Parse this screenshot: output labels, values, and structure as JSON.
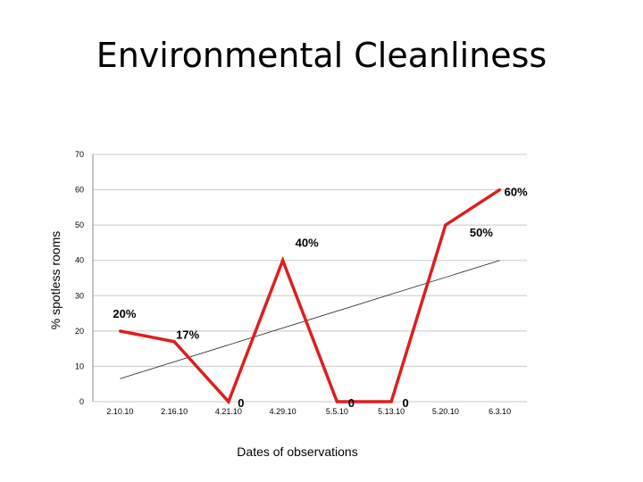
{
  "slide": {
    "title": "Environmental Cleanliness"
  },
  "chart_data": {
    "type": "line",
    "title": "Environmental Cleanliness",
    "xlabel": "Dates of observations",
    "ylabel": "% spotless rooms",
    "ylim": [
      0,
      70
    ],
    "yticks": [
      0,
      10,
      20,
      30,
      40,
      50,
      60,
      70
    ],
    "categories": [
      "2.10.10",
      "2.16.10",
      "4.21.10",
      "4.29.10",
      "5.5.10",
      "5.13.10",
      "5.20.10",
      "6.3.10"
    ],
    "series": [
      {
        "values": [
          20,
          17,
          0,
          40,
          0,
          0,
          50,
          60
        ],
        "data_labels": [
          "20%",
          "17%",
          "0",
          "40%",
          "0",
          "0",
          "50%",
          "60%"
        ],
        "color": "#dd1f1f"
      }
    ],
    "trendline": {
      "type": "linear",
      "start": 6.5,
      "end": 40,
      "color": "#222222"
    },
    "grid": true,
    "legend": "none"
  }
}
